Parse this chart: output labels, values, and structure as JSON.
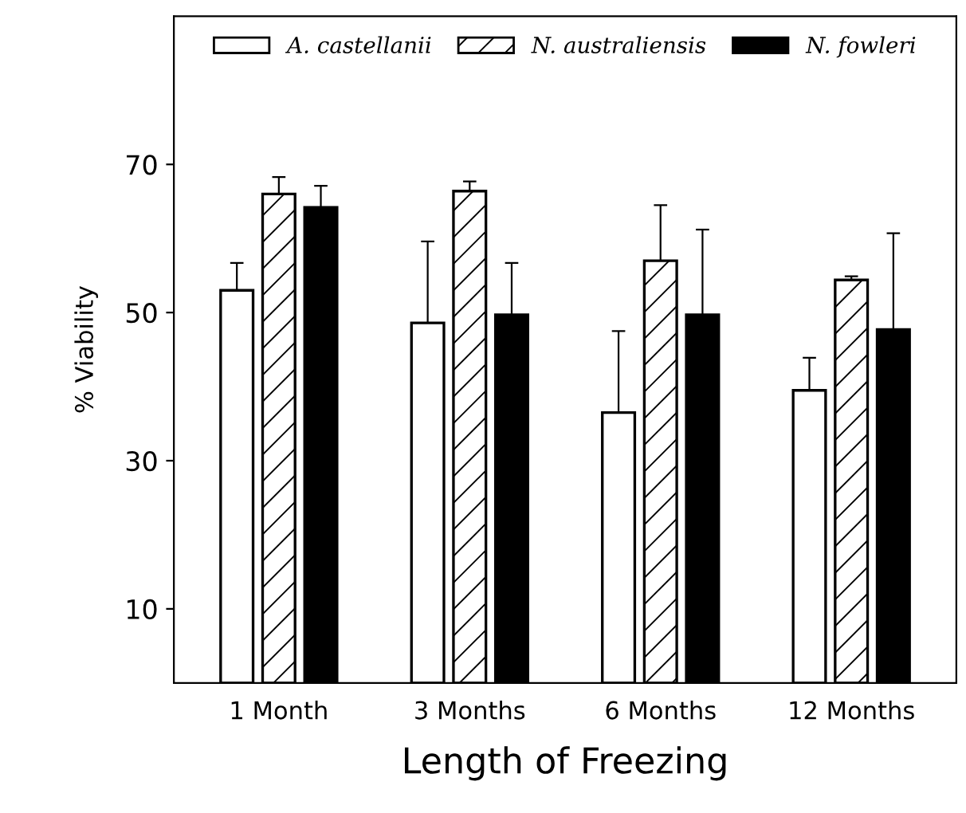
{
  "chart_data": {
    "type": "bar",
    "xlabel": "Length of Freezing",
    "ylabel": "% Viability",
    "categories": [
      "1 Month",
      "3 Months",
      "6 Months",
      "12 Months"
    ],
    "series": [
      {
        "name": "A. castellanii",
        "color": "#ffffff",
        "values": [
          53,
          48.6,
          36.5,
          39.5
        ],
        "errors": [
          3.7,
          11,
          11,
          4.4
        ]
      },
      {
        "name": "N. australiensis",
        "color": "#000000",
        "values": [
          66,
          66.4,
          57,
          54.4
        ],
        "errors": [
          2.3,
          1.3,
          7.5,
          0.5
        ]
      },
      {
        "name": "N. fowleri",
        "color": "#000000",
        "values": [
          64.2,
          49.7,
          49.7,
          47.7
        ],
        "errors": [
          2.9,
          7,
          11.5,
          13
        ]
      }
    ],
    "ylim": [
      0,
      90
    ],
    "yticks": [
      10,
      30,
      50,
      70
    ],
    "legend": "top",
    "grid": false
  }
}
